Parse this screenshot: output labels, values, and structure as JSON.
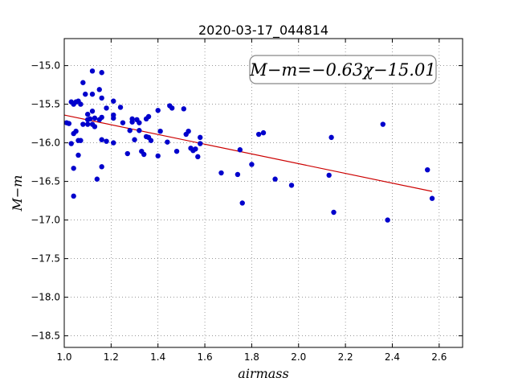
{
  "chart_data": {
    "type": "scatter",
    "title": "2020-03-17_044814",
    "xlabel": "airmass",
    "ylabel": "M−m",
    "xlim": [
      1.0,
      2.7
    ],
    "ylim": [
      -18.65,
      -14.65
    ],
    "y_inverted": true,
    "grid": true,
    "x_ticks": [
      1.0,
      1.2,
      1.4,
      1.6,
      1.8,
      2.0,
      2.2,
      2.4,
      2.6
    ],
    "x_tick_labels": [
      "1.0",
      "1.2",
      "1.4",
      "1.6",
      "1.8",
      "2.0",
      "2.2",
      "2.4",
      "2.6"
    ],
    "y_ticks": [
      -15.0,
      -15.5,
      -16.0,
      -16.5,
      -17.0,
      -17.5,
      -18.0,
      -18.5
    ],
    "y_tick_labels": [
      "−15.0",
      "−15.5",
      "−16.0",
      "−16.5",
      "−17.0",
      "−17.5",
      "−18.0",
      "−18.5"
    ],
    "annotation": "M−m=−0.63χ−15.01",
    "fit": {
      "slope": -0.63,
      "intercept": -15.01,
      "x_range": [
        1.0,
        2.57
      ],
      "color": "#cc0000"
    },
    "marker_color": "#0000cc",
    "points": [
      [
        1.01,
        -15.74
      ],
      [
        1.02,
        -15.75
      ],
      [
        1.03,
        -16.01
      ],
      [
        1.03,
        -15.47
      ],
      [
        1.04,
        -15.5
      ],
      [
        1.04,
        -15.88
      ],
      [
        1.04,
        -16.33
      ],
      [
        1.04,
        -16.69
      ],
      [
        1.05,
        -15.47
      ],
      [
        1.05,
        -15.85
      ],
      [
        1.06,
        -16.16
      ],
      [
        1.06,
        -15.97
      ],
      [
        1.06,
        -15.46
      ],
      [
        1.07,
        -15.5
      ],
      [
        1.07,
        -15.97
      ],
      [
        1.08,
        -15.22
      ],
      [
        1.08,
        -15.76
      ],
      [
        1.09,
        -15.37
      ],
      [
        1.1,
        -15.76
      ],
      [
        1.1,
        -15.7
      ],
      [
        1.1,
        -15.63
      ],
      [
        1.11,
        -15.69
      ],
      [
        1.12,
        -15.07
      ],
      [
        1.12,
        -15.59
      ],
      [
        1.12,
        -15.76
      ],
      [
        1.12,
        -15.37
      ],
      [
        1.13,
        -15.79
      ],
      [
        1.13,
        -15.68
      ],
      [
        1.14,
        -16.47
      ],
      [
        1.15,
        -15.31
      ],
      [
        1.15,
        -15.7
      ],
      [
        1.16,
        -15.09
      ],
      [
        1.16,
        -15.42
      ],
      [
        1.16,
        -15.67
      ],
      [
        1.16,
        -15.96
      ],
      [
        1.16,
        -16.31
      ],
      [
        1.18,
        -15.55
      ],
      [
        1.18,
        -15.98
      ],
      [
        1.21,
        -15.46
      ],
      [
        1.21,
        -15.64
      ],
      [
        1.21,
        -15.68
      ],
      [
        1.21,
        -16.0
      ],
      [
        1.24,
        -15.54
      ],
      [
        1.25,
        -15.74
      ],
      [
        1.27,
        -16.14
      ],
      [
        1.28,
        -15.84
      ],
      [
        1.29,
        -15.69
      ],
      [
        1.29,
        -15.73
      ],
      [
        1.3,
        -15.96
      ],
      [
        1.31,
        -15.7
      ],
      [
        1.32,
        -15.84
      ],
      [
        1.32,
        -15.74
      ],
      [
        1.33,
        -16.11
      ],
      [
        1.34,
        -16.15
      ],
      [
        1.35,
        -15.92
      ],
      [
        1.35,
        -15.69
      ],
      [
        1.36,
        -15.93
      ],
      [
        1.36,
        -15.66
      ],
      [
        1.37,
        -15.97
      ],
      [
        1.4,
        -15.58
      ],
      [
        1.4,
        -16.17
      ],
      [
        1.41,
        -15.85
      ],
      [
        1.44,
        -15.99
      ],
      [
        1.45,
        -15.52
      ],
      [
        1.46,
        -15.55
      ],
      [
        1.48,
        -16.11
      ],
      [
        1.51,
        -15.56
      ],
      [
        1.52,
        -15.89
      ],
      [
        1.53,
        -15.85
      ],
      [
        1.54,
        -16.07
      ],
      [
        1.55,
        -16.1
      ],
      [
        1.56,
        -16.08
      ],
      [
        1.57,
        -16.18
      ],
      [
        1.58,
        -15.93
      ],
      [
        1.58,
        -16.01
      ],
      [
        1.67,
        -16.39
      ],
      [
        1.74,
        -16.41
      ],
      [
        1.75,
        -16.09
      ],
      [
        1.76,
        -16.78
      ],
      [
        1.8,
        -16.28
      ],
      [
        1.83,
        -15.89
      ],
      [
        1.85,
        -15.87
      ],
      [
        1.9,
        -16.47
      ],
      [
        1.97,
        -16.55
      ],
      [
        2.13,
        -16.42
      ],
      [
        2.14,
        -15.93
      ],
      [
        2.15,
        -16.9
      ],
      [
        2.36,
        -15.76
      ],
      [
        2.38,
        -17.0
      ],
      [
        2.55,
        -16.35
      ],
      [
        2.57,
        -16.72
      ]
    ]
  }
}
